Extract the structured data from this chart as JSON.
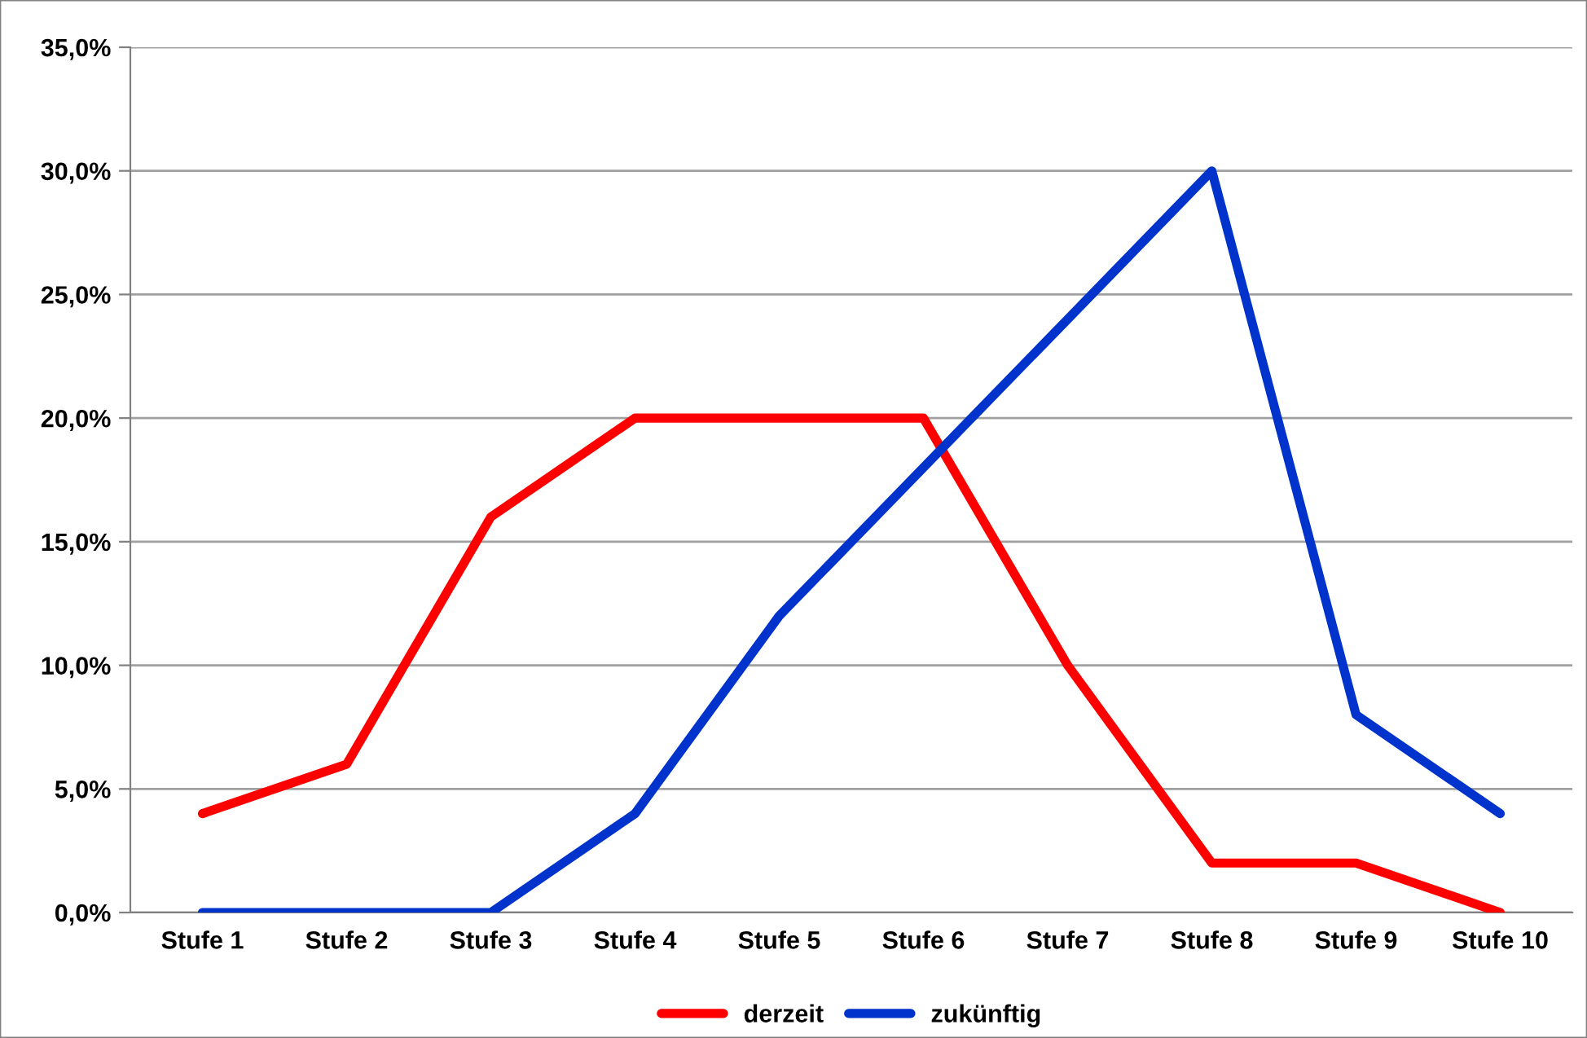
{
  "chart_data": {
    "type": "line",
    "categories": [
      "Stufe 1",
      "Stufe 2",
      "Stufe 3",
      "Stufe 4",
      "Stufe 5",
      "Stufe 6",
      "Stufe 7",
      "Stufe 8",
      "Stufe 9",
      "Stufe 10"
    ],
    "series": [
      {
        "name": "derzeit",
        "color": "#ff0000",
        "values": [
          4,
          6,
          16,
          20,
          20,
          20,
          10,
          2,
          2,
          0
        ]
      },
      {
        "name": "zukünftig",
        "color": "#0033cc",
        "values": [
          0,
          0,
          0,
          4,
          12,
          18,
          24,
          30,
          8,
          4
        ]
      }
    ],
    "ylim": [
      0,
      35
    ],
    "yticks": [
      {
        "value": 0,
        "label": "0,0%"
      },
      {
        "value": 5,
        "label": "5,0%"
      },
      {
        "value": 10,
        "label": "10,0%"
      },
      {
        "value": 15,
        "label": "15,0%"
      },
      {
        "value": 20,
        "label": "20,0%"
      },
      {
        "value": 25,
        "label": "25,0%"
      },
      {
        "value": 30,
        "label": "30,0%"
      },
      {
        "value": 35,
        "label": "35,0%"
      }
    ],
    "grid": "y",
    "legend": "bottom",
    "marker": "none",
    "line_style": "solid"
  }
}
